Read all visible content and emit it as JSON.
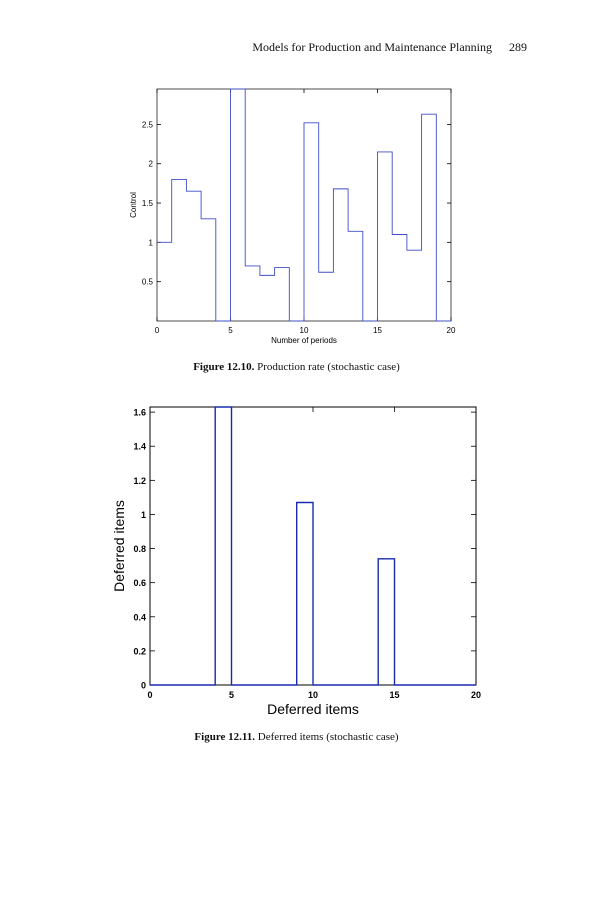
{
  "header": {
    "running_title": "Models for Production and Maintenance Planning",
    "page_number": "289"
  },
  "figures": [
    {
      "caption_label": "Figure 12.10.",
      "caption_text": " Production rate (stochastic case)"
    },
    {
      "caption_label": "Figure 12.11.",
      "caption_text": " Deferred items (stochastic case)"
    }
  ],
  "chart_data": [
    {
      "type": "line",
      "step": true,
      "title": "",
      "xlabel": "Number of periods",
      "ylabel": "Control",
      "xlim": [
        0,
        20
      ],
      "ylim": [
        0,
        2.95
      ],
      "xticks": [
        0,
        5,
        10,
        15,
        20
      ],
      "yticks": [
        0.5,
        1,
        1.5,
        2,
        2.5
      ],
      "xtick_labels": [
        "0",
        "5",
        "10",
        "15",
        "20"
      ],
      "ytick_labels": [
        "0.5",
        "1",
        "1.5",
        "2",
        "2.5"
      ],
      "series_color": "#3f4ec8",
      "x": [
        0,
        1,
        2,
        3,
        4,
        5,
        6,
        7,
        8,
        9,
        10,
        11,
        12,
        13,
        14,
        15,
        16,
        17,
        18,
        19
      ],
      "y": [
        1.0,
        1.8,
        1.65,
        1.3,
        0.0,
        2.95,
        0.7,
        0.58,
        0.68,
        0.0,
        2.52,
        0.62,
        1.68,
        1.14,
        0.0,
        2.15,
        1.1,
        0.9,
        2.63,
        0.0
      ]
    },
    {
      "type": "line",
      "title": "",
      "xlabel": "Deferred items",
      "ylabel": "Deferred items",
      "xlim": [
        0,
        20
      ],
      "ylim": [
        0,
        1.63
      ],
      "xticks": [
        0,
        5,
        10,
        15,
        20
      ],
      "yticks": [
        0,
        0.2,
        0.4,
        0.6,
        0.8,
        1,
        1.2,
        1.4,
        1.6
      ],
      "xtick_labels": [
        "0",
        "5",
        "10",
        "15",
        "20"
      ],
      "ytick_labels": [
        "0",
        "0.2",
        "0.4",
        "0.6",
        "0.8",
        "1",
        "1.2",
        "1.4",
        "1.6"
      ],
      "series_color": "#1a2ab0",
      "x": [
        0,
        4,
        4,
        5,
        5,
        9,
        9,
        10,
        10,
        14,
        14,
        15,
        15,
        20
      ],
      "y": [
        0,
        0,
        1.63,
        1.63,
        0,
        0,
        1.07,
        1.07,
        0,
        0,
        0.74,
        0.74,
        0,
        0
      ]
    }
  ]
}
